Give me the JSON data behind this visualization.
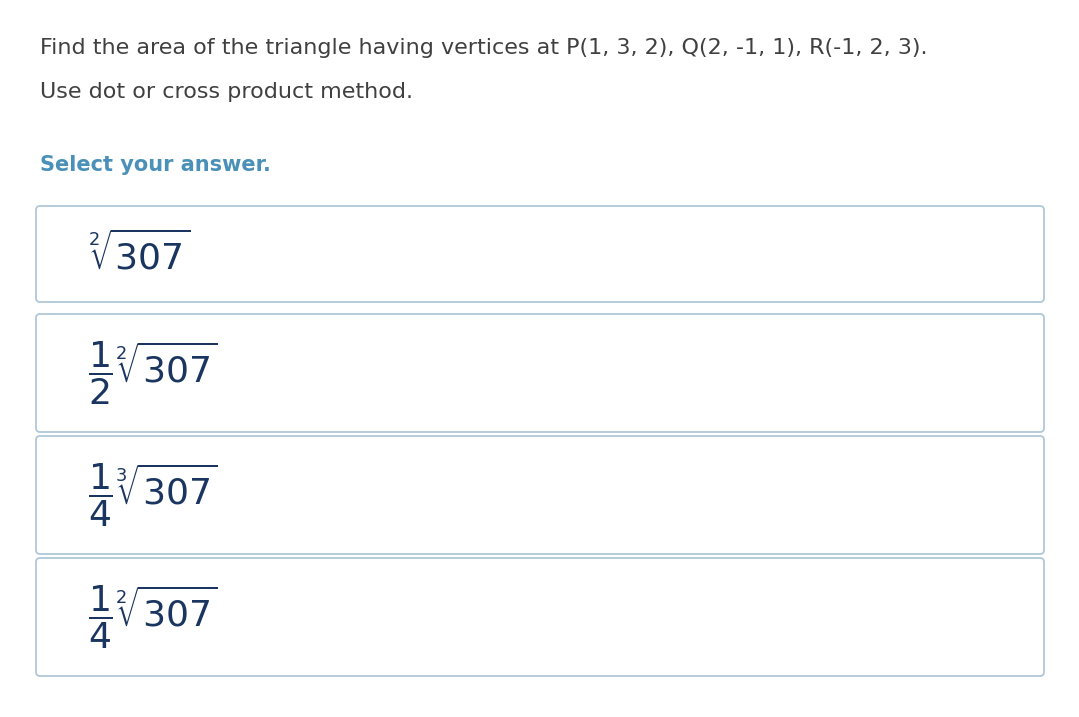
{
  "background_color": "#ffffff",
  "question_text_line1": "Find the area of the triangle having vertices at P(1, 3, 2), Q(2, -1, 1), R(-1, 2, 3).",
  "question_text_line2": "Use dot or cross product method.",
  "select_label": "Select your answer.",
  "select_label_color": "#4a90b8",
  "question_text_color": "#404040",
  "box_border_color": "#b0c8d8",
  "box_face_color": "#ffffff",
  "text_color": "#1a3560",
  "figsize": [
    10.79,
    7.17
  ],
  "dpi": 100,
  "option_labels_latex": [
    "$\\sqrt[2]{307}$",
    "$\\dfrac{1}{2}\\sqrt[2]{307}$",
    "$\\dfrac{1}{4}\\sqrt[3]{307}$",
    "$\\dfrac{1}{4}\\sqrt[2]{307}$"
  ]
}
